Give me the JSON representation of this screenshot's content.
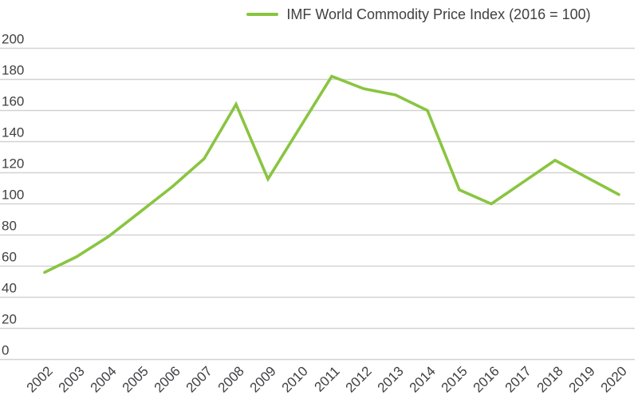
{
  "legend": {
    "label": "IMF World Commodity Price Index (2016 = 100)"
  },
  "chart_data": {
    "type": "line",
    "title": "",
    "xlabel": "",
    "ylabel": "",
    "x": [
      2002,
      2003,
      2004,
      2005,
      2006,
      2007,
      2008,
      2009,
      2010,
      2011,
      2012,
      2013,
      2014,
      2015,
      2016,
      2017,
      2018,
      2019,
      2020
    ],
    "series": [
      {
        "name": "IMF World Commodity Price Index (2016 = 100)",
        "values": [
          56,
          66,
          79,
          95,
          111,
          129,
          164,
          116,
          149,
          182,
          174,
          170,
          160,
          109,
          100,
          114,
          128,
          117,
          106
        ]
      }
    ],
    "ylim": [
      0,
      200
    ],
    "yticks": [
      0,
      20,
      40,
      60,
      80,
      100,
      120,
      140,
      160,
      180,
      200
    ],
    "grid": "horizontal",
    "legend_position": "top",
    "colors": {
      "line": "#89C540",
      "grid": "#d2d2d2",
      "text": "#3f4043",
      "background": "#ffffff"
    }
  }
}
